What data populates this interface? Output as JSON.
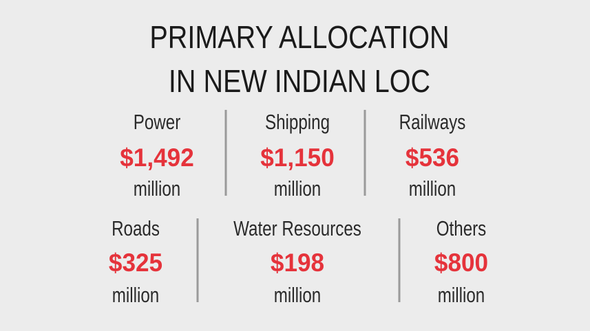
{
  "title": [
    "PRIMARY ALLOCATION",
    "IN NEW INDIAN LOC"
  ],
  "rows": [
    [
      {
        "label": "Power",
        "amount": "$1,492",
        "unit": "million"
      },
      {
        "label": "Shipping",
        "amount": "$1,150",
        "unit": "million"
      },
      {
        "label": "Railways",
        "amount": "$536",
        "unit": "million"
      }
    ],
    [
      {
        "label": "Roads",
        "amount": "$325",
        "unit": "million"
      },
      {
        "label": "Water Resources",
        "amount": "$198",
        "unit": "million"
      },
      {
        "label": "Others",
        "amount": "$800",
        "unit": "million"
      }
    ]
  ]
}
